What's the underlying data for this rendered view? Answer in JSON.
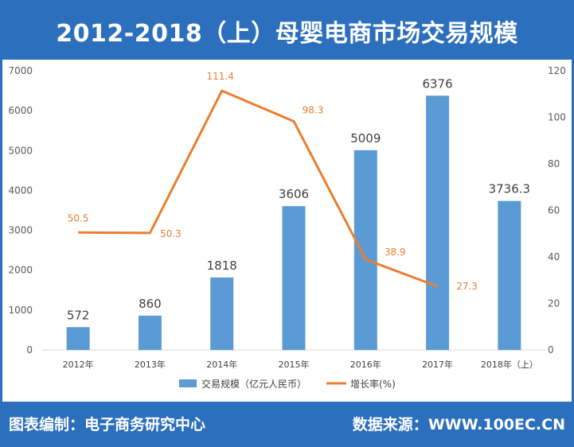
{
  "header": {
    "title": "2012-2018（上）母婴电商市场交易规模"
  },
  "footer": {
    "left_label": "图表编制：",
    "left_value": "电子商务研究中心",
    "right_label": "数据来源：",
    "right_value": "WWW.100EC.CN"
  },
  "colors": {
    "bar": "#5b9bd5",
    "line": "#ed7d31",
    "banner": "#2c6fbd"
  },
  "chart_data": {
    "type": "bar",
    "categories": [
      "2012年",
      "2013年",
      "2014年",
      "2015年",
      "2016年",
      "2017年",
      "2018年（上）"
    ],
    "series": [
      {
        "name": "交易规模（亿元人民币）",
        "type": "bar",
        "axis": "left",
        "values": [
          572,
          860,
          1818,
          3606,
          5009,
          6376,
          3736.3
        ],
        "labels": [
          "572",
          "860",
          "1818",
          "3606",
          "5009",
          "6376",
          "3736.3"
        ]
      },
      {
        "name": "增长率(%)",
        "type": "line",
        "axis": "right",
        "values": [
          50.5,
          50.3,
          111.4,
          98.3,
          38.9,
          27.3,
          null
        ],
        "labels": [
          "50.5",
          "50.3",
          "111.4",
          "98.3",
          "38.9",
          "27.3",
          ""
        ]
      }
    ],
    "y_left": {
      "min": 0,
      "max": 7000,
      "ticks": [
        "0",
        "1000",
        "2000",
        "3000",
        "4000",
        "5000",
        "6000",
        "7000"
      ]
    },
    "y_right": {
      "min": 0,
      "max": 120,
      "ticks": [
        "0",
        "20",
        "40",
        "60",
        "80",
        "100",
        "120"
      ]
    },
    "grid": false,
    "legend": "bottom"
  }
}
